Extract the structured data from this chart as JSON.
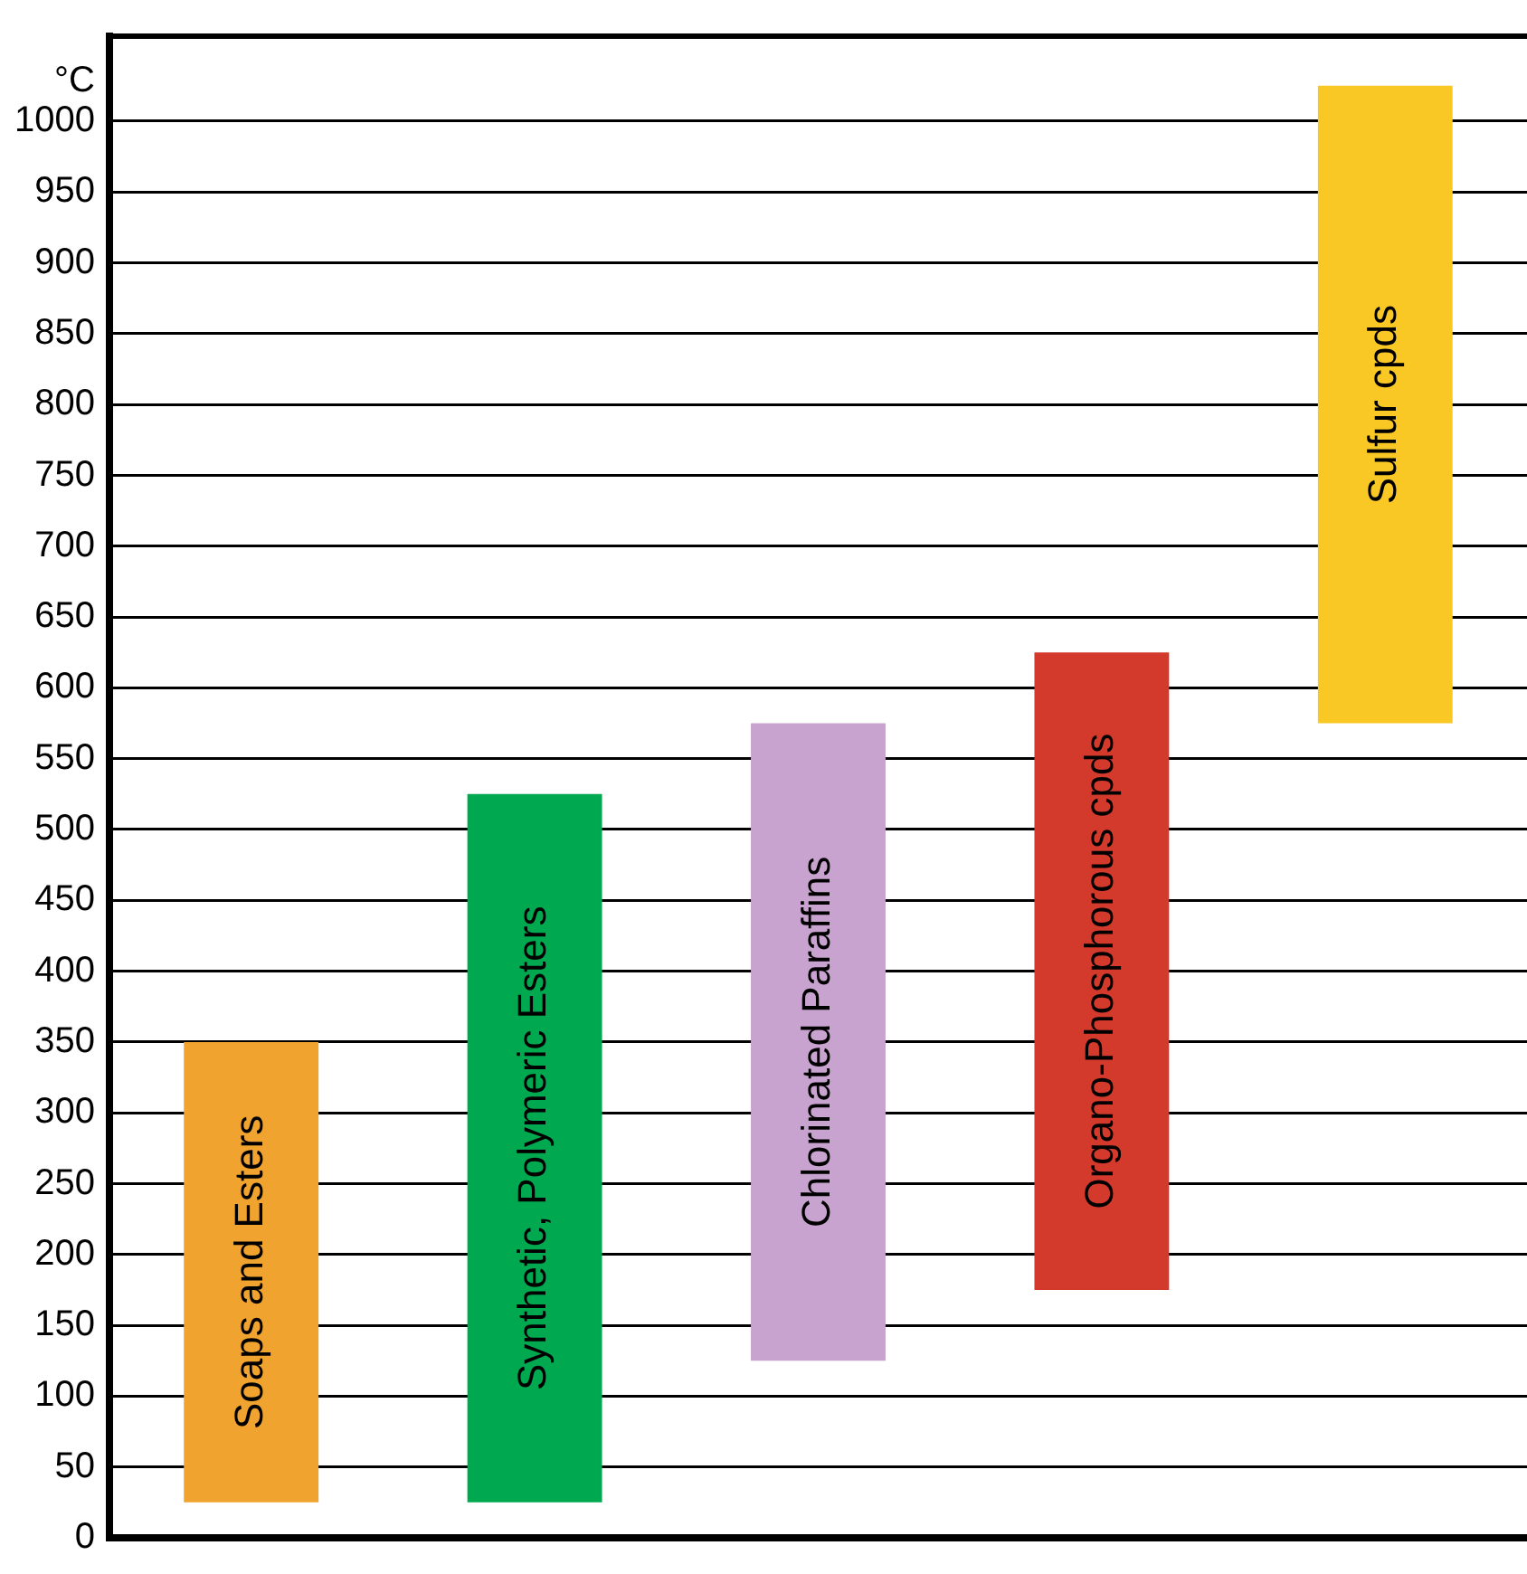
{
  "chart_data": {
    "type": "bar",
    "ylabel": "°C",
    "categories": [
      "Soaps and Esters",
      "Synthetic, Polymeric Esters",
      "Chlorinated Paraffins",
      "Organo-Phosphorous cpds",
      "Sulfur cpds"
    ],
    "base": [
      25,
      25,
      125,
      175,
      575
    ],
    "values": [
      325,
      500,
      450,
      450,
      450
    ],
    "colors": [
      "#f0a32e",
      "#00a84f",
      "#c9a3cf",
      "#d33a2c",
      "#f9c824"
    ],
    "ylim": [
      0,
      1060
    ],
    "yticks": [
      0,
      50,
      100,
      150,
      200,
      250,
      300,
      350,
      400,
      450,
      500,
      550,
      600,
      650,
      700,
      750,
      800,
      850,
      900,
      950,
      1000
    ],
    "grid": "y"
  }
}
